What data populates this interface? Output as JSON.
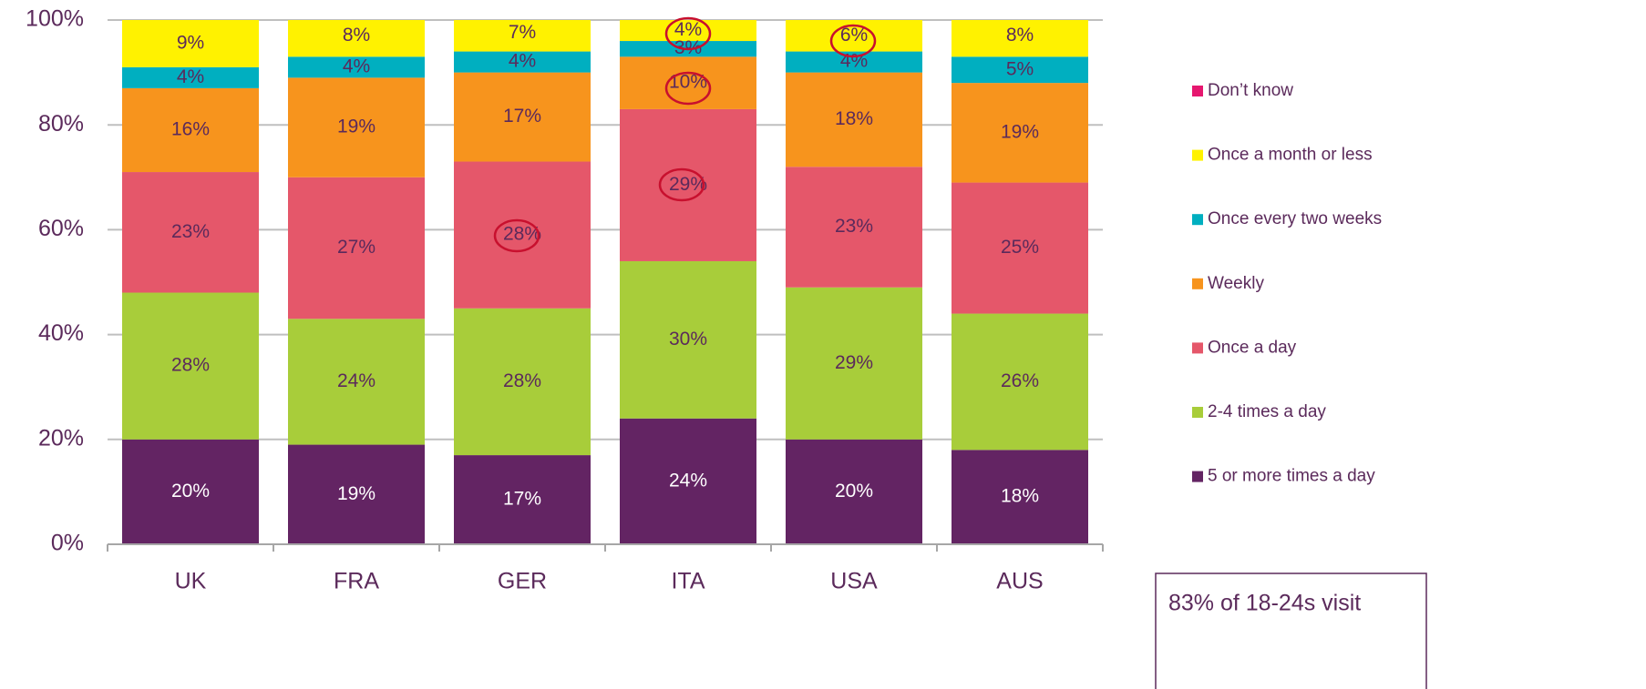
{
  "chart_data": {
    "type": "bar",
    "stacked": true,
    "categories": [
      "UK",
      "FRA",
      "GER",
      "ITA",
      "USA",
      "AUS"
    ],
    "series": [
      {
        "name": "5 or more times a day",
        "color": "#632463",
        "values": [
          20,
          19,
          17,
          24,
          20,
          18
        ],
        "value_labels": [
          "20%",
          "19%",
          "17%",
          "24%",
          "20%",
          "18%"
        ]
      },
      {
        "name": "2-4 times a day",
        "color": "#a8cd3a",
        "values": [
          28,
          24,
          28,
          30,
          29,
          26
        ],
        "value_labels": [
          "28%",
          "24%",
          "28%",
          "30%",
          "29%",
          "26%"
        ]
      },
      {
        "name": "Once a day",
        "color": "#e5576a",
        "values": [
          23,
          27,
          28,
          29,
          23,
          25
        ],
        "value_labels": [
          "23%",
          "27%",
          "28%",
          "29%",
          "23%",
          "25%"
        ]
      },
      {
        "name": "Weekly",
        "color": "#f7941d",
        "values": [
          16,
          19,
          17,
          10,
          18,
          19
        ],
        "value_labels": [
          "16%",
          "19%",
          "17%",
          "10%",
          "18%",
          "19%"
        ]
      },
      {
        "name": "Once every two weeks",
        "color": "#00afc0",
        "values": [
          4,
          4,
          4,
          3,
          4,
          5
        ],
        "value_labels": [
          "4%",
          "4%",
          "4%",
          "3%",
          "4%",
          "5%"
        ]
      },
      {
        "name": "Once a month or less",
        "color": "#fff200",
        "values": [
          9,
          8,
          7,
          4,
          6,
          8
        ],
        "value_labels": [
          "9%",
          "8%",
          "7%",
          "4%",
          "6%",
          "8%"
        ]
      },
      {
        "name": "Don’t know",
        "color": "#e6176f",
        "values": [
          0,
          0,
          0,
          1,
          1,
          0
        ]
      }
    ],
    "ylim": [
      0,
      100
    ],
    "yticks": [
      {
        "value": 0,
        "label": "0%"
      },
      {
        "value": 20,
        "label": "20%"
      },
      {
        "value": 40,
        "label": "40%"
      },
      {
        "value": 60,
        "label": "60%"
      },
      {
        "value": 80,
        "label": "80%"
      },
      {
        "value": 100,
        "label": "100%"
      }
    ],
    "grid": true,
    "legend": "right",
    "annotations": [
      "83% of 18-24s visit"
    ]
  }
}
